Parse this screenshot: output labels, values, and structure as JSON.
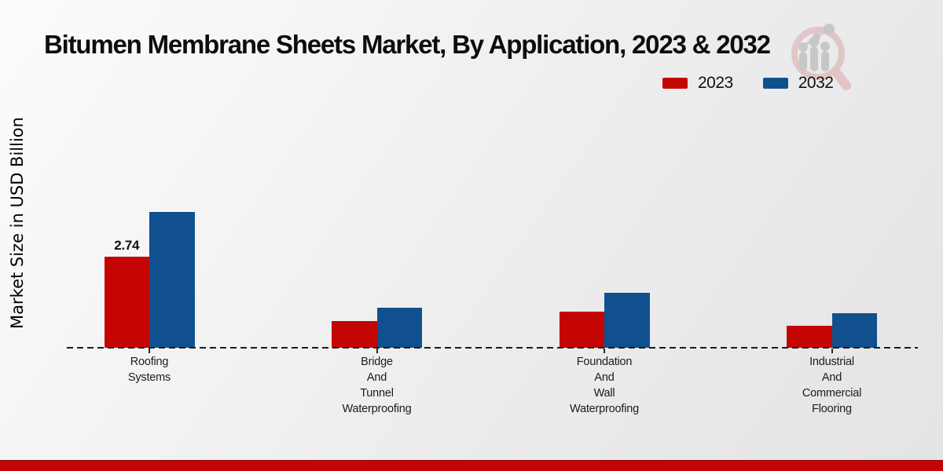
{
  "title": "Bitumen Membrane Sheets Market, By Application, 2023 & 2032",
  "y_axis_label": "Market Size in USD Billion",
  "legend": {
    "position": "top-right",
    "items": [
      {
        "label": "2023",
        "color": "#c50404"
      },
      {
        "label": "2032",
        "color": "#11508f"
      }
    ]
  },
  "watermark_icon": "magnifier-growth-chart-logo",
  "footer_bar_color": "#c50404",
  "chart_data": {
    "type": "bar",
    "title": "Bitumen Membrane Sheets Market, By Application, 2023 & 2032",
    "xlabel": "",
    "ylabel": "Market Size in USD Billion",
    "categories": [
      "Roofing Systems",
      "Bridge And Tunnel Waterproofing",
      "Foundation And Wall Waterproofing",
      "Industrial And Commercial Flooring"
    ],
    "series": [
      {
        "name": "2023",
        "color": "#c50404",
        "values": [
          2.74,
          0.8,
          1.08,
          0.67
        ]
      },
      {
        "name": "2032",
        "color": "#11508f",
        "values": [
          4.09,
          1.21,
          1.65,
          1.04
        ]
      }
    ],
    "annotations": [
      {
        "series": 0,
        "category": 0,
        "text": "2.74"
      }
    ],
    "ylim": [
      0,
      4.5
    ],
    "grid": false,
    "baseline_style": "dashed",
    "legend_position": "top-right"
  }
}
